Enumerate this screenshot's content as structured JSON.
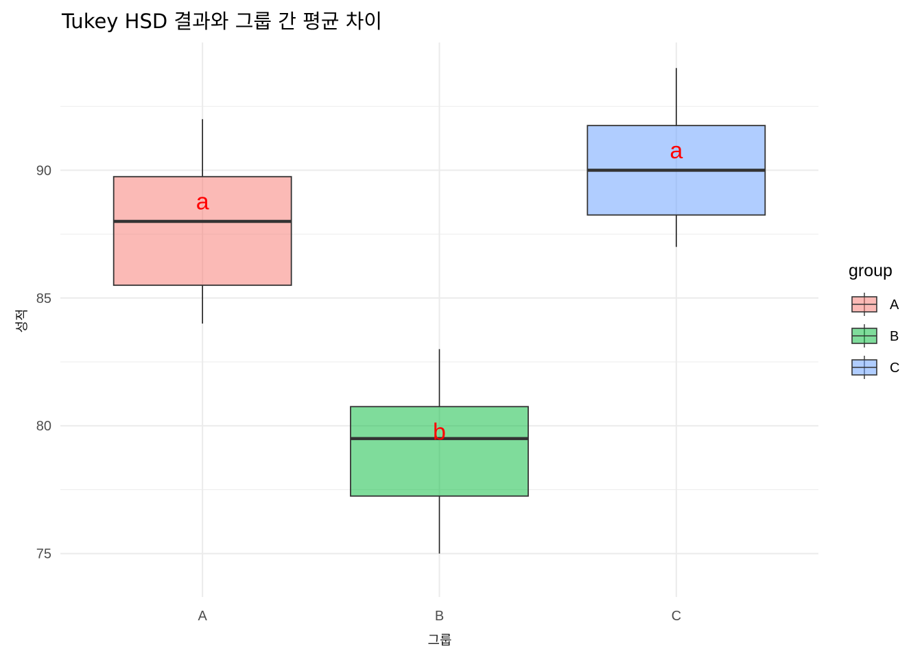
{
  "chart_data": {
    "type": "box",
    "title": "Tukey HSD 결과와 그룹 간 평균 차이",
    "xlabel": "그룹",
    "ylabel": "성적",
    "ylim": [
      73.3,
      95.0
    ],
    "yticks": [
      75,
      80,
      85,
      90
    ],
    "grid": true,
    "categories": [
      "A",
      "B",
      "C"
    ],
    "boxes": [
      {
        "group": "A",
        "min": 84.0,
        "q1": 85.5,
        "median": 88.0,
        "q3": 89.75,
        "max": 92.0,
        "color": "#F8766D",
        "letter": "a"
      },
      {
        "group": "B",
        "min": 75.0,
        "q1": 77.25,
        "median": 79.5,
        "q3": 80.75,
        "max": 83.0,
        "color": "#00BA38",
        "letter": "b"
      },
      {
        "group": "C",
        "min": 87.0,
        "q1": 88.25,
        "median": 90.0,
        "q3": 91.75,
        "max": 94.0,
        "color": "#619CFF",
        "letter": "a"
      }
    ],
    "letter_color": "#FF0000",
    "legend": {
      "title": "group",
      "position": "right",
      "entries": [
        "A",
        "B",
        "C"
      ]
    }
  }
}
